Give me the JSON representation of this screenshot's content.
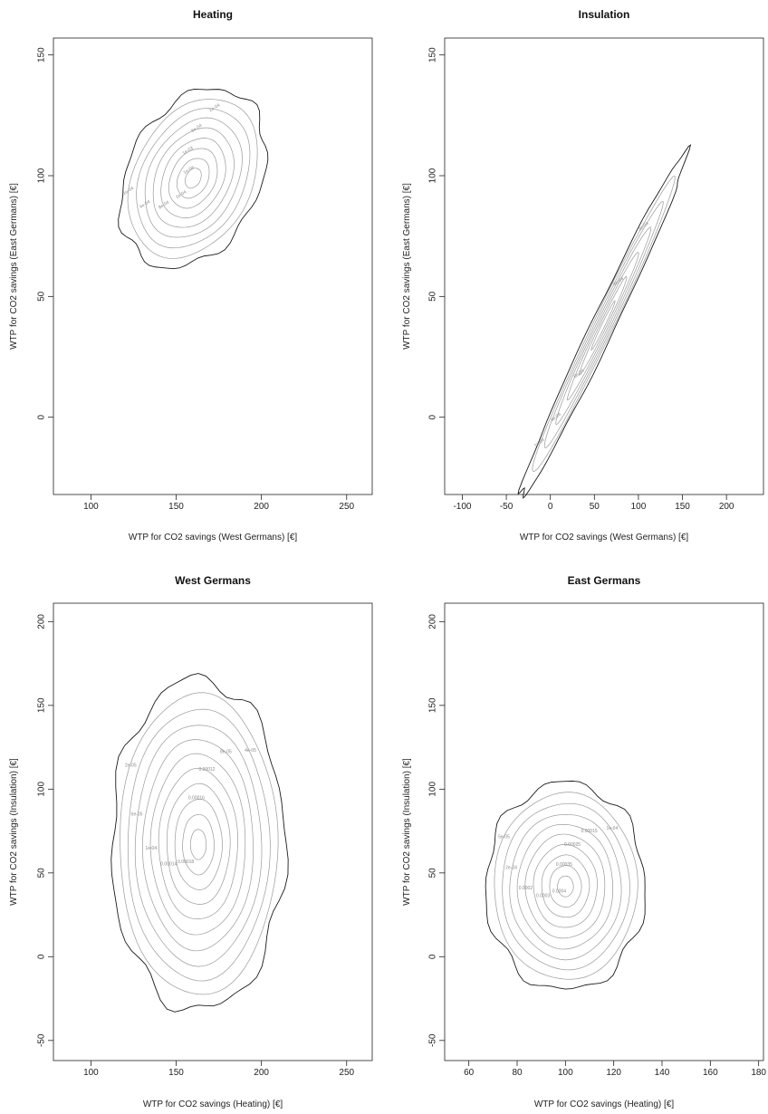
{
  "chart_data": [
    {
      "type": "contour",
      "title": "Heating",
      "xlabel": "WTP for CO2 savings (West Germans) [€]",
      "ylabel": "WTP for CO2 savings (East Germans) [€]",
      "xlim": [
        78,
        265
      ],
      "ylim": [
        -32,
        157
      ],
      "xticks": [
        100,
        150,
        200,
        250
      ],
      "yticks": [
        0,
        50,
        100,
        150
      ],
      "center": [
        160,
        99
      ],
      "outer_radii": [
        46,
        33
      ],
      "rotation_deg": 32,
      "levels": 9,
      "labels": [
        "1e-04",
        "2e-04",
        "4e-04",
        "6e-04",
        "8e-04",
        "1e-03",
        "1e-04",
        "1e-04"
      ]
    },
    {
      "type": "contour",
      "title": "Insulation",
      "xlabel": "WTP for CO2 savings (West Germans) [€]",
      "ylabel": "WTP for CO2 savings (East Germans) [€]",
      "xlim": [
        -120,
        242
      ],
      "ylim": [
        -32,
        157
      ],
      "xticks": [
        -100,
        -50,
        0,
        50,
        100,
        150,
        200
      ],
      "yticks": [
        0,
        50,
        100,
        150
      ],
      "center": [
        60,
        38
      ],
      "outer_radii": [
        118,
        9
      ],
      "rotation_deg": 37,
      "levels": 7,
      "labels": [
        "1e-04",
        "2e-04",
        "4e-04",
        "6e-04",
        "8e-04"
      ]
    },
    {
      "type": "contour",
      "title": "West Germans",
      "xlabel": "WTP for CO2 savings (Heating) [€]",
      "ylabel": "WTP for CO2 savings (Insulation) [€]",
      "xlim": [
        78,
        265
      ],
      "ylim": [
        -62,
        211
      ],
      "xticks": [
        100,
        150,
        200,
        250
      ],
      "yticks": [
        -50,
        0,
        50,
        100,
        150,
        200
      ],
      "center": [
        163,
        67
      ],
      "outer_radii": [
        51,
        99
      ],
      "rotation_deg": 0,
      "levels": 11,
      "labels": [
        "2e-05",
        "4e-05",
        "6e-05",
        "8e-05",
        "1e-04",
        "0.00012",
        "0.00014",
        "0.00016",
        "0.00018"
      ]
    },
    {
      "type": "contour",
      "title": "East Germans",
      "xlabel": "WTP for CO2 savings (Heating) [€]",
      "ylabel": "WTP for CO2 savings (Insulation) [€]",
      "xlim": [
        50,
        182
      ],
      "ylim": [
        -62,
        211
      ],
      "xticks": [
        60,
        80,
        100,
        120,
        140,
        160,
        180
      ],
      "yticks": [
        -50,
        0,
        50,
        100,
        150,
        200
      ],
      "center": [
        100,
        42
      ],
      "outer_radii": [
        33,
        62
      ],
      "rotation_deg": 0,
      "levels": 10,
      "labels": [
        "5e-05",
        "1e-04",
        "2e-04",
        "0.00015",
        "0.0002",
        "0.00025",
        "0.0003",
        "0.00035",
        "0.0004"
      ]
    }
  ]
}
